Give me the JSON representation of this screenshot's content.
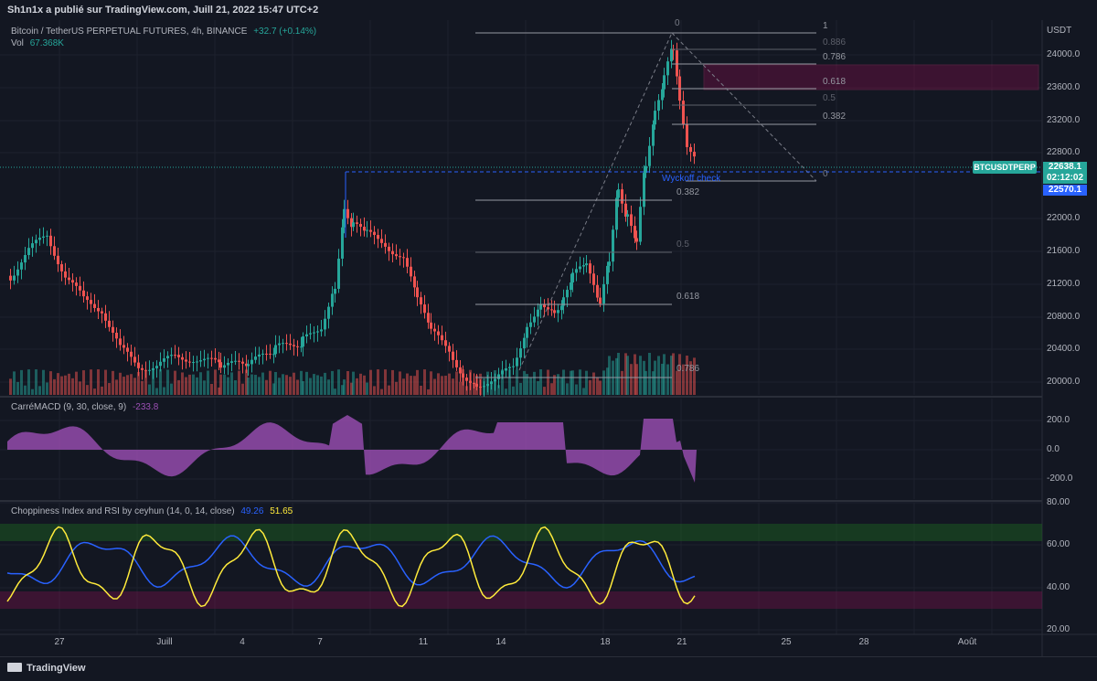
{
  "header": {
    "publisher_text": "Sh1n1x a publié sur TradingView.com, Juill 21, 2022 15:47 UTC+2"
  },
  "main_legend": {
    "symbol": "Bitcoin / TetherUS PERPETUAL FUTURES, 4h, BINANCE",
    "change": "+32.7 (+0.14%)",
    "vol_label": "Vol",
    "vol_value": "67.368K"
  },
  "macd_legend": {
    "name": "CarréMACD (9, 30, close, 9)",
    "value": "-233.8"
  },
  "chop_legend": {
    "name": "Choppiness Index and RSI by ceyhun (14, 0, 14, close)",
    "v1": "49.26",
    "v2": "51.65"
  },
  "price_axis": {
    "currency": "USDT",
    "ticks": [
      "24000.0",
      "23600.0",
      "23200.0",
      "22800.0",
      "22000.0",
      "21600.0",
      "21200.0",
      "20800.0",
      "20400.0",
      "20000.0"
    ]
  },
  "macd_axis": {
    "ticks": [
      "200.0",
      "0.0",
      "-200.0"
    ]
  },
  "chop_axis": {
    "ticks": [
      "80.00",
      "60.00",
      "40.00",
      "20.00"
    ]
  },
  "time_axis": {
    "labels": [
      "27",
      "Juill",
      "4",
      "7",
      "11",
      "14",
      "18",
      "21",
      "25",
      "28",
      "Août"
    ]
  },
  "price_tags": {
    "symbol": "BTCUSDTPERP",
    "last_price": "22638.1",
    "countdown": "02:12:02",
    "line_price": "22570.1"
  },
  "fib_upper": {
    "levels": [
      "0",
      "1",
      "0.886",
      "0.786",
      "0.618",
      "0.5",
      "0.382",
      "0"
    ]
  },
  "fib_lower": {
    "levels": [
      "0.382",
      "0.5",
      "0.618",
      "0.786"
    ]
  },
  "annotation": {
    "wyckoff": "Wyckoff check"
  },
  "footer": {
    "brand": "TradingView"
  },
  "colors": {
    "bull": "#26a69a",
    "bear": "#ef5350",
    "macd": "#9c4fb5",
    "chop": "#2962ff",
    "rsi": "#ffeb3b",
    "zone": "#880e4f",
    "dashed": "#2962ff"
  }
}
